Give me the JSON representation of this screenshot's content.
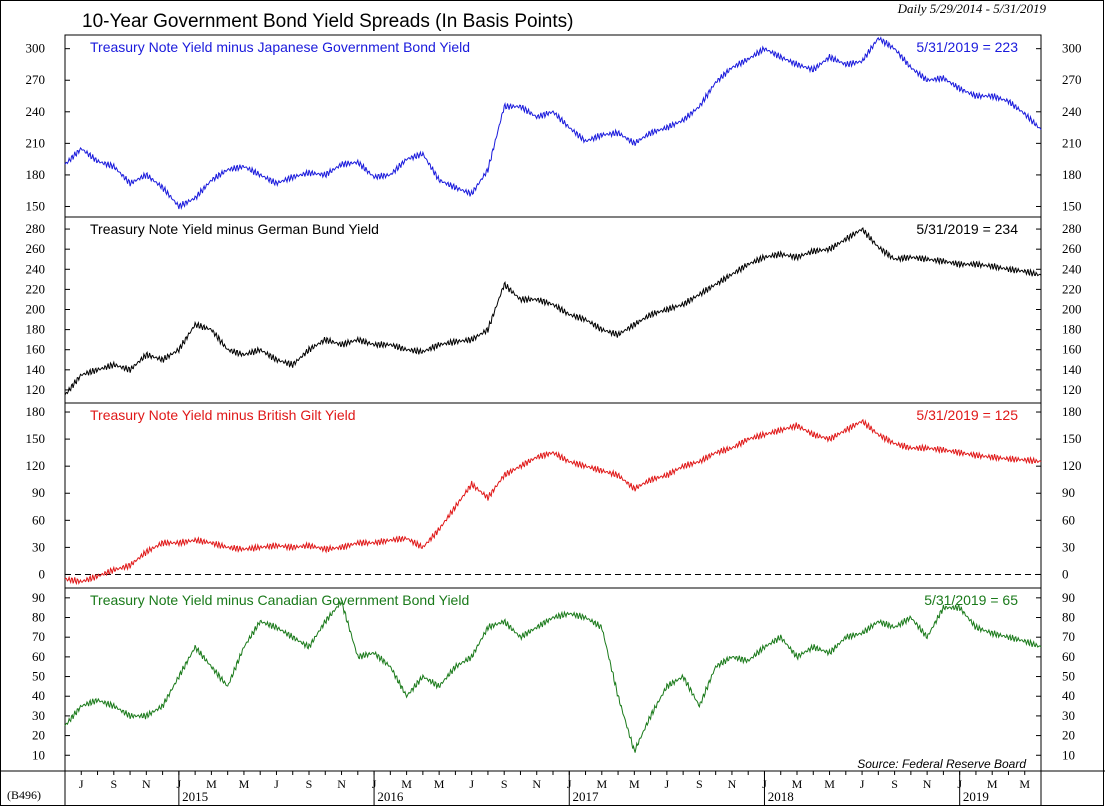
{
  "header": {
    "title": "10-Year Government Bond Yield Spreads (In Basis Points)",
    "date_range": "Daily 5/29/2014 - 5/31/2019",
    "chart_code": "(B496)",
    "source": "Source: Federal Reserve Board"
  },
  "x_axis": {
    "month_letters": [
      "J",
      "S",
      "N",
      "J",
      "M",
      "M",
      "J",
      "S",
      "N",
      "J",
      "M",
      "M",
      "J",
      "S",
      "N",
      "J",
      "M",
      "M",
      "J",
      "S",
      "N",
      "J",
      "M",
      "M",
      "J",
      "S",
      "N",
      "J",
      "M",
      "M"
    ],
    "month_index": [
      1,
      3,
      5,
      7,
      9,
      11,
      13,
      15,
      17,
      19,
      21,
      23,
      25,
      27,
      29,
      31,
      33,
      35,
      37,
      39,
      41,
      43,
      45,
      47,
      49,
      51,
      53,
      55,
      57,
      59
    ],
    "years": [
      "2015",
      "2016",
      "2017",
      "2018",
      "2019"
    ],
    "year_index": [
      8,
      20,
      32,
      44,
      56
    ]
  },
  "chart_data": [
    {
      "type": "line",
      "label": "Treasury Note Yield minus Japanese Government Bond Yield",
      "last_value_label": "5/31/2019 = 223",
      "color": "#1a1adc",
      "x_unit": "months since 6/1/2014",
      "yticks": [
        150,
        180,
        210,
        240,
        270,
        300
      ],
      "ylim": [
        140,
        313
      ],
      "x": [
        0,
        1,
        2,
        3,
        4,
        5,
        6,
        7,
        8,
        9,
        10,
        11,
        12,
        13,
        14,
        15,
        16,
        17,
        18,
        19,
        20,
        21,
        22,
        23,
        24,
        25,
        26,
        27,
        28,
        29,
        30,
        31,
        32,
        33,
        34,
        35,
        36,
        37,
        38,
        39,
        40,
        41,
        42,
        43,
        44,
        45,
        46,
        47,
        48,
        49,
        50,
        51,
        52,
        53,
        54,
        55,
        56,
        57,
        58,
        59,
        60
      ],
      "values": [
        190,
        205,
        193,
        188,
        172,
        180,
        168,
        150,
        158,
        175,
        185,
        188,
        180,
        172,
        178,
        182,
        180,
        190,
        192,
        178,
        180,
        195,
        200,
        175,
        168,
        162,
        185,
        245,
        245,
        235,
        240,
        225,
        212,
        218,
        220,
        210,
        220,
        225,
        232,
        245,
        268,
        282,
        290,
        300,
        292,
        285,
        280,
        292,
        285,
        288,
        310,
        300,
        282,
        270,
        272,
        262,
        255,
        255,
        250,
        238,
        223
      ]
    },
    {
      "type": "line",
      "label": "Treasury Note Yield minus German Bund Yield",
      "last_value_label": "5/31/2019 = 234",
      "color": "#000000",
      "x_unit": "months since 6/1/2014",
      "yticks": [
        120,
        140,
        160,
        180,
        200,
        220,
        240,
        260,
        280
      ],
      "ylim": [
        107,
        292
      ],
      "x": [
        0,
        1,
        2,
        3,
        4,
        5,
        6,
        7,
        8,
        9,
        10,
        11,
        12,
        13,
        14,
        15,
        16,
        17,
        18,
        19,
        20,
        21,
        22,
        23,
        24,
        25,
        26,
        27,
        28,
        29,
        30,
        31,
        32,
        33,
        34,
        35,
        36,
        37,
        38,
        39,
        40,
        41,
        42,
        43,
        44,
        45,
        46,
        47,
        48,
        49,
        50,
        51,
        52,
        53,
        54,
        55,
        56,
        57,
        58,
        59,
        60
      ],
      "values": [
        115,
        135,
        140,
        145,
        140,
        155,
        150,
        160,
        185,
        180,
        160,
        155,
        160,
        150,
        145,
        160,
        170,
        165,
        170,
        165,
        165,
        160,
        158,
        165,
        168,
        170,
        180,
        225,
        210,
        210,
        205,
        195,
        190,
        180,
        175,
        185,
        195,
        200,
        205,
        215,
        225,
        235,
        245,
        252,
        255,
        252,
        258,
        260,
        270,
        280,
        262,
        250,
        252,
        250,
        248,
        245,
        245,
        243,
        240,
        238,
        234
      ]
    },
    {
      "type": "line",
      "label": "Treasury Note Yield minus British Gilt Yield",
      "last_value_label": "5/31/2019 = 125",
      "color": "#e01818",
      "x_unit": "months since 6/1/2014",
      "yticks": [
        0,
        30,
        60,
        90,
        120,
        150,
        180
      ],
      "ylim": [
        -15,
        190
      ],
      "reference_line": 0,
      "x": [
        0,
        1,
        2,
        3,
        4,
        5,
        6,
        7,
        8,
        9,
        10,
        11,
        12,
        13,
        14,
        15,
        16,
        17,
        18,
        19,
        20,
        21,
        22,
        23,
        24,
        25,
        26,
        27,
        28,
        29,
        30,
        31,
        32,
        33,
        34,
        35,
        36,
        37,
        38,
        39,
        40,
        41,
        42,
        43,
        44,
        45,
        46,
        47,
        48,
        49,
        50,
        51,
        52,
        53,
        54,
        55,
        56,
        57,
        58,
        59,
        60
      ],
      "values": [
        -5,
        -8,
        -2,
        5,
        10,
        25,
        35,
        35,
        38,
        35,
        30,
        28,
        30,
        32,
        30,
        32,
        28,
        30,
        35,
        35,
        38,
        40,
        30,
        50,
        75,
        100,
        85,
        110,
        120,
        130,
        135,
        125,
        120,
        115,
        110,
        95,
        105,
        110,
        120,
        125,
        135,
        140,
        150,
        155,
        160,
        165,
        155,
        150,
        160,
        170,
        155,
        145,
        140,
        140,
        138,
        135,
        132,
        130,
        128,
        127,
        125
      ]
    },
    {
      "type": "line",
      "label": "Treasury Note Yield minus Canadian Government Bond Yield",
      "last_value_label": "5/31/2019 = 65",
      "color": "#1a7a1a",
      "x_unit": "months since 6/1/2014",
      "yticks": [
        10,
        20,
        30,
        40,
        50,
        60,
        70,
        80,
        90
      ],
      "ylim": [
        2,
        95
      ],
      "x": [
        0,
        1,
        2,
        3,
        4,
        5,
        6,
        7,
        8,
        9,
        10,
        11,
        12,
        13,
        14,
        15,
        16,
        17,
        18,
        19,
        20,
        21,
        22,
        23,
        24,
        25,
        26,
        27,
        28,
        29,
        30,
        31,
        32,
        33,
        34,
        35,
        36,
        37,
        38,
        39,
        40,
        41,
        42,
        43,
        44,
        45,
        46,
        47,
        48,
        49,
        50,
        51,
        52,
        53,
        54,
        55,
        56,
        57,
        58,
        59,
        60
      ],
      "values": [
        25,
        35,
        38,
        35,
        30,
        30,
        35,
        50,
        65,
        55,
        45,
        65,
        78,
        75,
        70,
        65,
        78,
        88,
        60,
        62,
        55,
        40,
        50,
        45,
        55,
        60,
        75,
        78,
        70,
        75,
        80,
        82,
        80,
        75,
        40,
        12,
        30,
        45,
        50,
        35,
        55,
        60,
        58,
        65,
        70,
        60,
        65,
        62,
        70,
        72,
        78,
        75,
        80,
        70,
        85,
        85,
        75,
        72,
        70,
        68,
        65
      ]
    }
  ]
}
